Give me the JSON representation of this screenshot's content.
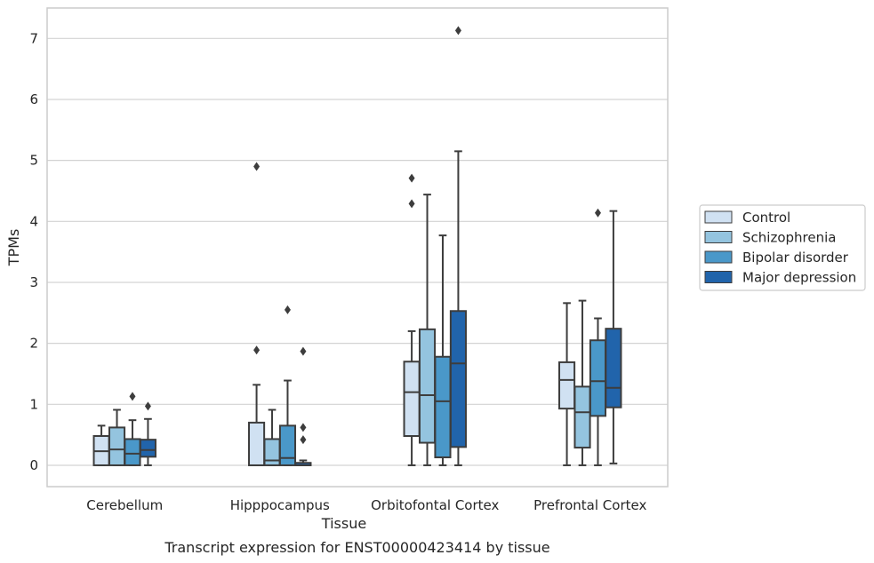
{
  "chart_data": {
    "type": "box",
    "title": "",
    "xlabel": "Tissue",
    "ylabel": "TPMs",
    "caption": "Transcript expression for ENST00000423414 by tissue",
    "ylim": [
      -0.35,
      7.5
    ],
    "yticks": [
      0,
      1,
      2,
      3,
      4,
      5,
      6,
      7
    ],
    "grid": "horizontal",
    "legend_position": "right",
    "categories": [
      "Cerebellum",
      "Hipppocampus",
      "Orbitofontal Cortex",
      "Prefrontal Cortex"
    ],
    "series": [
      {
        "name": "Control",
        "color": "#d0e1f2",
        "boxes": [
          {
            "q1": 0.0,
            "median": 0.23,
            "q3": 0.48,
            "whislo": 0.0,
            "whishi": 0.65,
            "fliers": []
          },
          {
            "q1": 0.0,
            "median": 0.0,
            "q3": 0.7,
            "whislo": 0.0,
            "whishi": 1.32,
            "fliers": [
              1.89,
              4.9
            ]
          },
          {
            "q1": 0.48,
            "median": 1.2,
            "q3": 1.7,
            "whislo": 0.0,
            "whishi": 2.2,
            "fliers": [
              4.29,
              4.71
            ]
          },
          {
            "q1": 0.93,
            "median": 1.4,
            "q3": 1.69,
            "whislo": 0.0,
            "whishi": 2.66,
            "fliers": []
          }
        ]
      },
      {
        "name": "Schizophrenia",
        "color": "#94c4df",
        "boxes": [
          {
            "q1": 0.0,
            "median": 0.26,
            "q3": 0.62,
            "whislo": 0.0,
            "whishi": 0.91,
            "fliers": []
          },
          {
            "q1": 0.0,
            "median": 0.08,
            "q3": 0.43,
            "whislo": 0.0,
            "whishi": 0.91,
            "fliers": []
          },
          {
            "q1": 0.37,
            "median": 1.15,
            "q3": 2.23,
            "whislo": 0.0,
            "whishi": 4.44,
            "fliers": []
          },
          {
            "q1": 0.29,
            "median": 0.87,
            "q3": 1.29,
            "whislo": 0.0,
            "whishi": 2.7,
            "fliers": []
          }
        ]
      },
      {
        "name": "Bipolar disorder",
        "color": "#4a98c9",
        "boxes": [
          {
            "q1": 0.0,
            "median": 0.19,
            "q3": 0.43,
            "whislo": 0.0,
            "whishi": 0.74,
            "fliers": [
              1.13
            ]
          },
          {
            "q1": 0.0,
            "median": 0.12,
            "q3": 0.65,
            "whislo": 0.0,
            "whishi": 1.39,
            "fliers": [
              2.55
            ]
          },
          {
            "q1": 0.13,
            "median": 1.05,
            "q3": 1.78,
            "whislo": 0.0,
            "whishi": 3.77,
            "fliers": []
          },
          {
            "q1": 0.81,
            "median": 1.38,
            "q3": 2.05,
            "whislo": 0.0,
            "whishi": 2.41,
            "fliers": [
              4.14
            ]
          }
        ]
      },
      {
        "name": "Major depression",
        "color": "#2164ab",
        "boxes": [
          {
            "q1": 0.14,
            "median": 0.25,
            "q3": 0.42,
            "whislo": 0.0,
            "whishi": 0.76,
            "fliers": [
              0.97
            ]
          },
          {
            "q1": 0.0,
            "median": 0.0,
            "q3": 0.04,
            "whislo": 0.0,
            "whishi": 0.08,
            "fliers": [
              0.42,
              0.62,
              1.87
            ]
          },
          {
            "q1": 0.3,
            "median": 1.67,
            "q3": 2.53,
            "whislo": 0.0,
            "whishi": 5.15,
            "fliers": [
              7.13
            ]
          },
          {
            "q1": 0.95,
            "median": 1.27,
            "q3": 2.24,
            "whislo": 0.03,
            "whishi": 4.17,
            "fliers": []
          }
        ]
      }
    ]
  }
}
